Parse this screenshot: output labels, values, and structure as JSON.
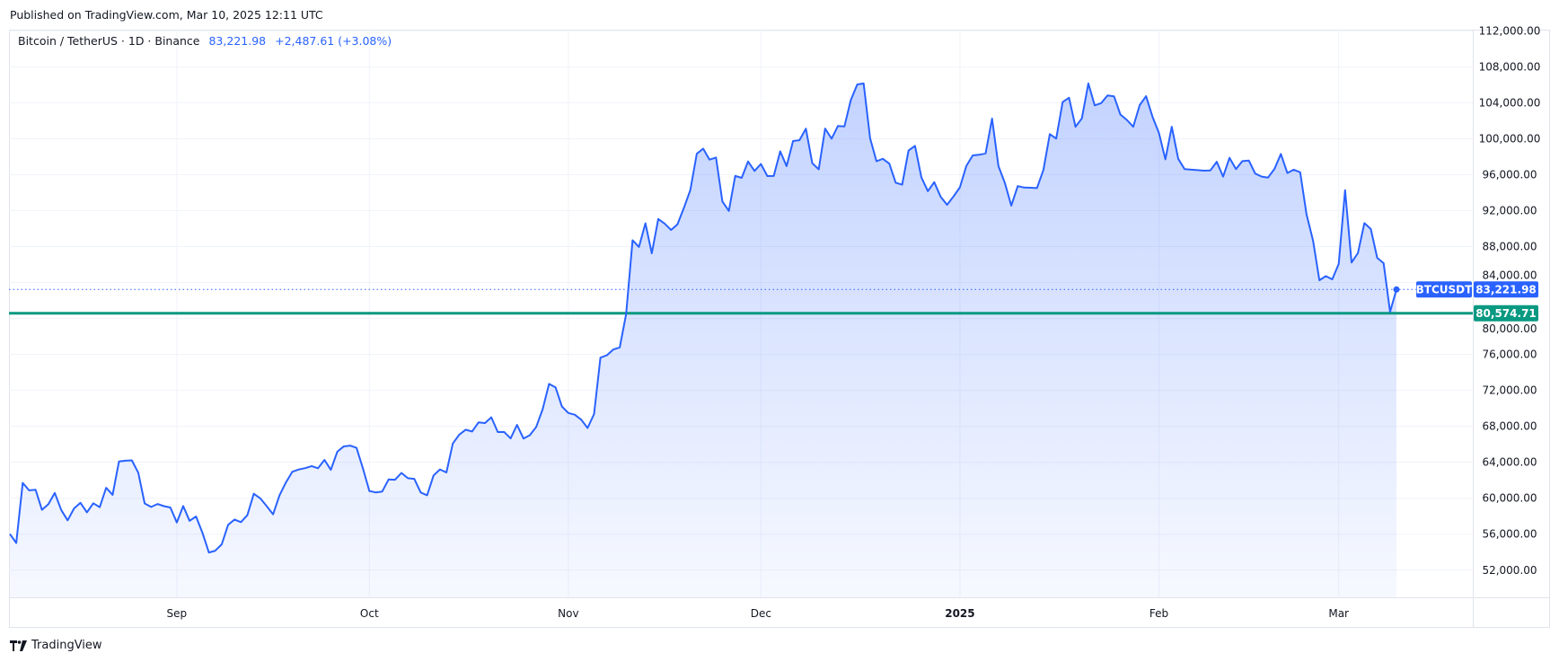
{
  "header": {
    "published": "Published on TradingView.com, Mar 10, 2025 12:11 UTC"
  },
  "legend": {
    "symbol": "Bitcoin / TetherUS · 1D · Binance",
    "price": "83,221.98",
    "change": "+2,487.61 (+3.08%)"
  },
  "footer": {
    "brand": "TradingView",
    "logo_icon": "tradingview-logo-icon"
  },
  "colors": {
    "line": "#2962ff",
    "fill": "#2962ff",
    "support": "#089981",
    "grid": "#f0f3fa"
  },
  "chart_data": {
    "type": "area",
    "title": "",
    "xlabel": "",
    "ylabel": "",
    "x_start": "2024-08-06",
    "x_interval": "1D",
    "ylim": [
      48000,
      113500
    ],
    "yticks": [
      52000,
      56000,
      60000,
      64000,
      68000,
      72000,
      76000,
      80000,
      84000,
      88000,
      92000,
      96000,
      100000,
      104000,
      108000,
      112000
    ],
    "xticks": [
      {
        "date": "2024-09-01",
        "label": "Sep"
      },
      {
        "date": "2024-10-01",
        "label": "Oct"
      },
      {
        "date": "2024-11-01",
        "label": "Nov"
      },
      {
        "date": "2024-12-01",
        "label": "Dec"
      },
      {
        "date": "2025-01-01",
        "label": "2025"
      },
      {
        "date": "2025-02-01",
        "label": "Feb"
      },
      {
        "date": "2025-03-01",
        "label": "Mar"
      }
    ],
    "grid": true,
    "series": [
      {
        "values": [
          56034,
          55027,
          61710,
          60880,
          60945,
          58712,
          59346,
          60588,
          58685,
          57542,
          58874,
          59491,
          58427,
          59439,
          59014,
          61158,
          60381,
          64094,
          64178,
          64219,
          62834,
          59416,
          59034,
          59359,
          59123,
          58973,
          57301,
          59132,
          57487,
          57970,
          56160,
          53962,
          54160,
          54869,
          57042,
          57635,
          57339,
          58132,
          60498,
          59993,
          59132,
          58213,
          60309,
          61759,
          62947,
          63201,
          63348,
          63578,
          63339,
          64262,
          63152,
          65173,
          65769,
          65858,
          65602,
          63327,
          60805,
          60650,
          60752,
          62086,
          62058,
          62819,
          62224,
          62160,
          60637,
          60327,
          62540,
          63206,
          62870,
          66084,
          67074,
          67620,
          67421,
          68428,
          68362,
          69001,
          67368,
          67370,
          66654,
          68162,
          66641,
          67014,
          67929,
          69907,
          72720,
          72340,
          70215,
          69482,
          69289,
          68742,
          67811,
          69359,
          75639,
          75904,
          76545,
          76778,
          80474,
          88701,
          87955,
          90584,
          87250,
          91066,
          90558,
          89845,
          90464,
          92310,
          94286,
          98317,
          98892,
          97672,
          97900,
          93010,
          91965,
          95863,
          95643,
          97460,
          96407,
          97185,
          95840,
          95849,
          98587,
          96945,
          99740,
          99831,
          101109,
          97276,
          96593,
          101125,
          100000,
          101418,
          101372,
          104298,
          106030,
          106140,
          100041,
          97490,
          97756,
          97224,
          95105,
          94884,
          98676,
          99200,
          95705,
          94164,
          95164,
          93530,
          92644,
          93576,
          94592,
          96984,
          98142,
          98210,
          98365,
          102235,
          96954,
          95060,
          92552,
          94727,
          94566,
          94546,
          94500,
          96534,
          100504,
          100013,
          104078,
          104556,
          101331,
          102260,
          106143,
          103706,
          103960,
          104820,
          104714,
          102682,
          102087,
          101333,
          103733,
          104722,
          102429,
          100635,
          97700,
          101329,
          97763,
          96613,
          96554,
          96506,
          96444,
          96462,
          97430,
          95778,
          97870,
          96608,
          97500,
          97569,
          96118,
          95780,
          95671,
          96644,
          98305,
          96181,
          96551,
          96258,
          91552,
          88680,
          84250,
          84708,
          84349,
          86064,
          94270,
          86220,
          87281,
          90606,
          89961,
          86742,
          86154,
          80734,
          83221.98
        ]
      }
    ],
    "last_price": {
      "label": "BTCUSDT",
      "value": "83,221.98",
      "number": 83221.98
    },
    "support_line": {
      "value": "80,574.71",
      "number": 80574.71
    }
  }
}
